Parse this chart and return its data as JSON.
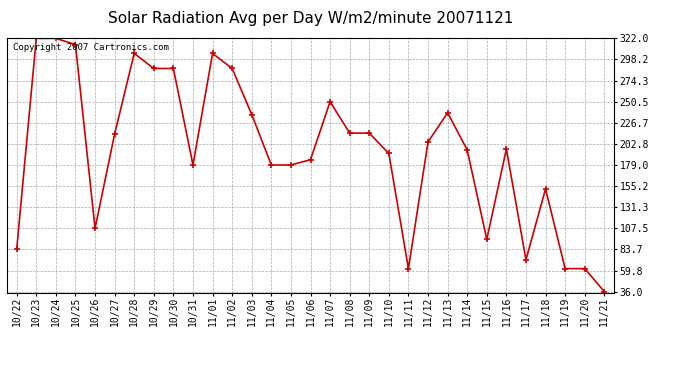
{
  "title": "Solar Radiation Avg per Day W/m2/minute 20071121",
  "copyright_text": "Copyright 2007 Cartronics.com",
  "labels": [
    "10/22",
    "10/23",
    "10/24",
    "10/25",
    "10/26",
    "10/27",
    "10/28",
    "10/29",
    "10/30",
    "10/31",
    "11/01",
    "11/02",
    "11/03",
    "11/04",
    "11/05",
    "11/06",
    "11/07",
    "11/08",
    "11/09",
    "11/10",
    "11/11",
    "11/12",
    "11/13",
    "11/14",
    "11/15",
    "11/16",
    "11/17",
    "11/18",
    "11/19",
    "11/20",
    "11/21"
  ],
  "values": [
    83.7,
    322.0,
    322.0,
    315.0,
    107.5,
    214.0,
    305.0,
    288.0,
    288.0,
    179.0,
    305.0,
    288.0,
    236.0,
    179.0,
    179.0,
    185.0,
    250.5,
    215.0,
    215.0,
    192.0,
    62.0,
    205.0,
    238.0,
    196.0,
    95.0,
    197.0,
    72.0,
    152.0,
    62.0,
    62.0,
    36.0
  ],
  "line_color": "#cc0000",
  "marker_color": "#cc0000",
  "background_color": "#ffffff",
  "grid_color": "#aaaaaa",
  "ylim_min": 36.0,
  "ylim_max": 322.0,
  "yticks": [
    36.0,
    59.8,
    83.7,
    107.5,
    131.3,
    155.2,
    179.0,
    202.8,
    226.7,
    250.5,
    274.3,
    298.2,
    322.0
  ],
  "title_fontsize": 11,
  "tick_fontsize": 7,
  "copyright_fontsize": 6.5
}
